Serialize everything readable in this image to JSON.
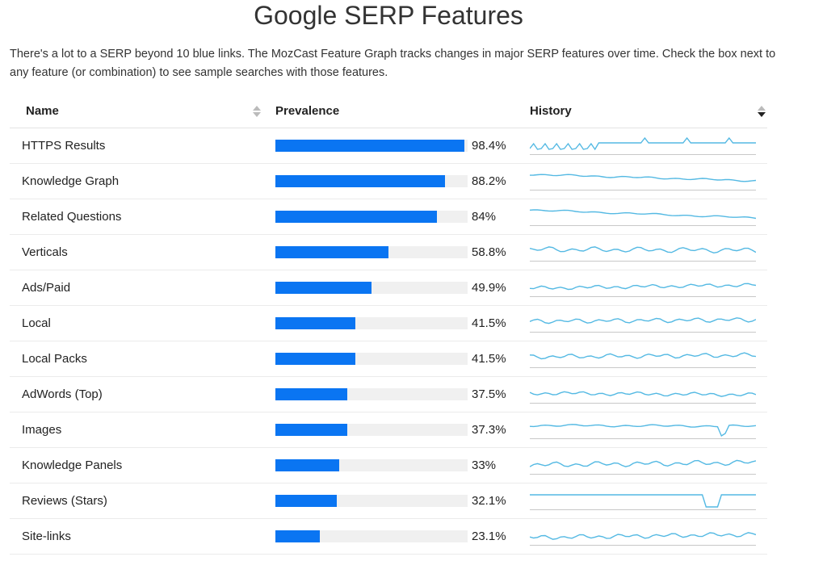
{
  "page": {
    "title": "Google SERP Features",
    "intro": "There's a lot to a SERP beyond 10 blue links. The MozCast Feature Graph tracks changes in major SERP features over time. Check the box next to any feature (or combination) to see sample searches with those features."
  },
  "table": {
    "headers": {
      "name": "Name",
      "prevalence": "Prevalence",
      "history": "History"
    },
    "sort": {
      "column": "prevalence",
      "direction": "descending"
    },
    "colors": {
      "bar": "#0a75f2",
      "track": "#f0f0f0",
      "sparkline": "#54b9e3"
    },
    "rows": [
      {
        "name": "HTTPS Results",
        "prevalence": 98.4,
        "label": "98.4%"
      },
      {
        "name": "Knowledge Graph",
        "prevalence": 88.2,
        "label": "88.2%"
      },
      {
        "name": "Related Questions",
        "prevalence": 84,
        "label": "84%"
      },
      {
        "name": "Verticals",
        "prevalence": 58.8,
        "label": "58.8%"
      },
      {
        "name": "Ads/Paid",
        "prevalence": 49.9,
        "label": "49.9%"
      },
      {
        "name": "Local",
        "prevalence": 41.5,
        "label": "41.5%"
      },
      {
        "name": "Local Packs",
        "prevalence": 41.5,
        "label": "41.5%"
      },
      {
        "name": "AdWords (Top)",
        "prevalence": 37.5,
        "label": "37.5%"
      },
      {
        "name": "Images",
        "prevalence": 37.3,
        "label": "37.3%"
      },
      {
        "name": "Knowledge Panels",
        "prevalence": 33,
        "label": "33%"
      },
      {
        "name": "Reviews (Stars)",
        "prevalence": 32.1,
        "label": "32.1%"
      },
      {
        "name": "Site-links",
        "prevalence": 23.1,
        "label": "23.1%"
      }
    ]
  }
}
